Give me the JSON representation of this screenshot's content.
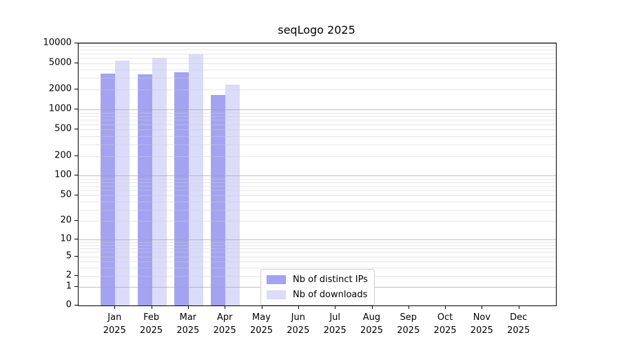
{
  "chart_data": {
    "type": "bar",
    "title": "seqLogo 2025",
    "categories": [
      "Jan",
      "Feb",
      "Mar",
      "Apr",
      "May",
      "Jun",
      "Jul",
      "Aug",
      "Sep",
      "Oct",
      "Nov",
      "Dec"
    ],
    "x_year": "2025",
    "series": [
      {
        "name": "Nb of distinct IPs",
        "color": "#a3a3f2",
        "values": [
          3500,
          3450,
          3700,
          1650,
          null,
          null,
          null,
          null,
          null,
          null,
          null,
          null
        ]
      },
      {
        "name": "Nb of downloads",
        "color": "#dbdbfa",
        "values": [
          5450,
          6000,
          6900,
          2400,
          null,
          null,
          null,
          null,
          null,
          null,
          null,
          null
        ]
      }
    ],
    "y_ticks": [
      0,
      1,
      2,
      5,
      10,
      20,
      50,
      100,
      200,
      500,
      1000,
      2000,
      5000,
      10000
    ],
    "ylim": [
      0,
      10000
    ],
    "scale": "log1p",
    "grid": "horizontal major+minor, drawn over bars",
    "legend_position": "lower center",
    "axis_color": "#000000",
    "grid_major_color": "#a0a0a0",
    "grid_minor_color": "#cdcdcd",
    "background_color": "#ffffff"
  }
}
